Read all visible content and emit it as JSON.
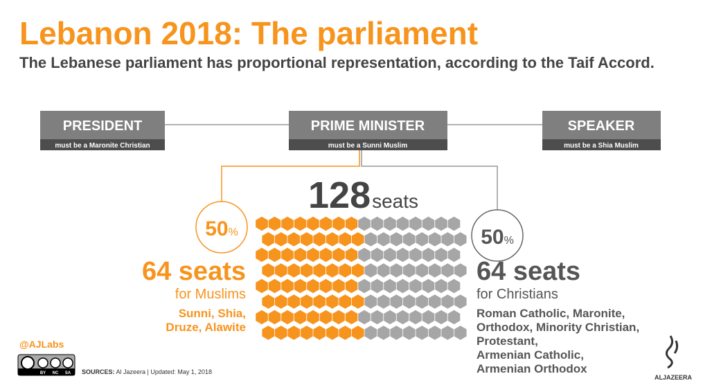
{
  "header": {
    "title": "Lebanon 2018: The parliament",
    "subtitle": "The Lebanese parliament has proportional representation, according to the Taif Accord."
  },
  "roles": [
    {
      "title": "PRESIDENT",
      "requirement": "must be a Maronite Christian"
    },
    {
      "title": "PRIME MINISTER",
      "requirement": "must be a Sunni Muslim"
    },
    {
      "title": "SPEAKER",
      "requirement": "must be a Shia Muslim"
    }
  ],
  "total": {
    "count": 128,
    "unit": "seats"
  },
  "groups": [
    {
      "percent": 50,
      "percent_sign": "%",
      "count": 64,
      "unit": "seats",
      "label": "for Muslims",
      "color": "#f7941d",
      "sects": [
        "Sunni, Shia,",
        "Druze, Alawite"
      ]
    },
    {
      "percent": 50,
      "percent_sign": "%",
      "count": 64,
      "unit": "seats",
      "label": "for Christians",
      "color": "#a6a6a6",
      "sects": [
        "Roman Catholic, Maronite,",
        "Orthodox, Minority Christian,",
        "Protestant,",
        "Armenian Catholic,",
        "Armenian Orthodox"
      ]
    }
  ],
  "footer": {
    "handle": "@AJLabs",
    "license": [
      "BY",
      "NC",
      "SA"
    ],
    "sources_label": "SOURCES:",
    "sources": "Al Jazeera | Updated: May 1, 2018",
    "logo": "ALJAZEERA"
  }
}
